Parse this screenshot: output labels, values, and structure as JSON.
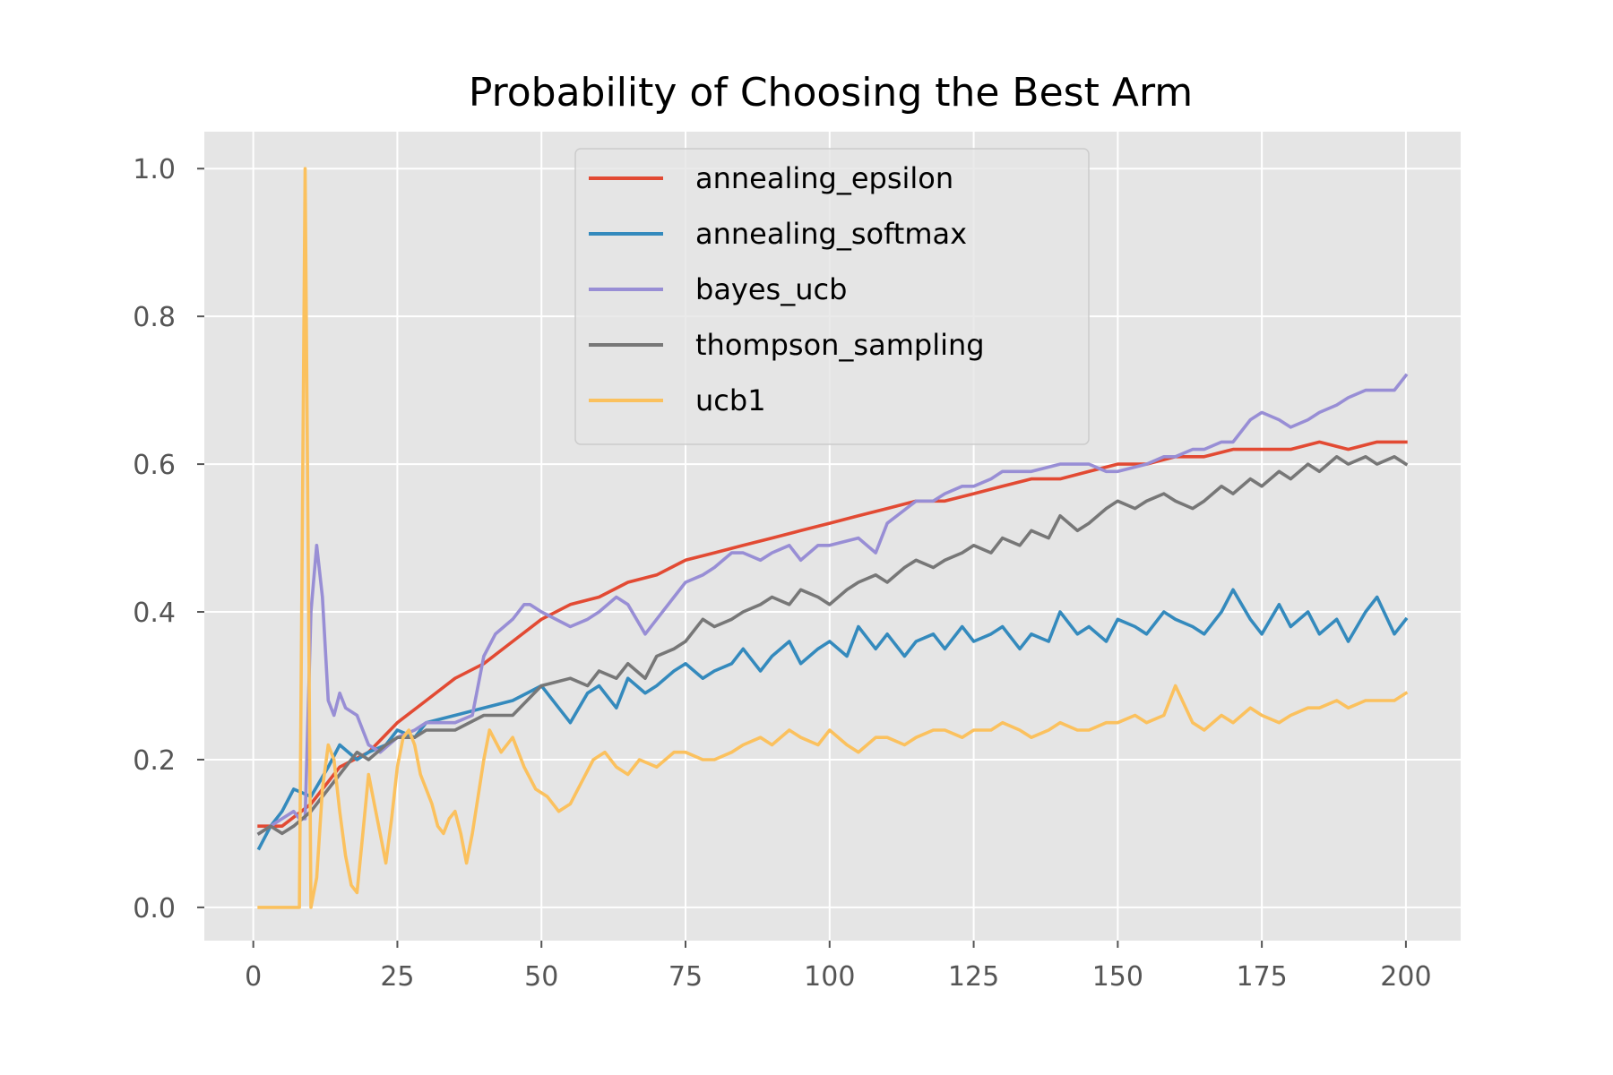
{
  "chart_data": {
    "type": "line",
    "title": "Probability of Choosing the Best Arm",
    "xlabel": "",
    "ylabel": "",
    "xlim": [
      -8.5,
      209.5
    ],
    "ylim": [
      -0.045,
      1.05
    ],
    "xticks": [
      0,
      25,
      50,
      75,
      100,
      125,
      150,
      175,
      200
    ],
    "xtick_labels": [
      "0",
      "25",
      "50",
      "75",
      "100",
      "125",
      "150",
      "175",
      "200"
    ],
    "yticks": [
      0.0,
      0.2,
      0.4,
      0.6,
      0.8,
      1.0
    ],
    "ytick_labels": [
      "0.0",
      "0.2",
      "0.4",
      "0.6",
      "0.8",
      "1.0"
    ],
    "grid": true,
    "background": "#E5E5E5",
    "legend_position": "upper-center",
    "series": [
      {
        "name": "annealing_epsilon",
        "color": "#E24A33",
        "x": [
          1,
          5,
          10,
          15,
          20,
          25,
          30,
          35,
          40,
          45,
          50,
          55,
          60,
          65,
          70,
          75,
          80,
          85,
          90,
          95,
          100,
          105,
          110,
          115,
          120,
          125,
          130,
          135,
          140,
          145,
          150,
          155,
          160,
          165,
          170,
          175,
          180,
          185,
          190,
          195,
          200
        ],
        "y": [
          0.11,
          0.11,
          0.14,
          0.19,
          0.21,
          0.25,
          0.28,
          0.31,
          0.33,
          0.36,
          0.39,
          0.41,
          0.42,
          0.44,
          0.45,
          0.47,
          0.48,
          0.49,
          0.5,
          0.51,
          0.52,
          0.53,
          0.54,
          0.55,
          0.55,
          0.56,
          0.57,
          0.58,
          0.58,
          0.59,
          0.6,
          0.6,
          0.61,
          0.61,
          0.62,
          0.62,
          0.62,
          0.63,
          0.62,
          0.63,
          0.63
        ]
      },
      {
        "name": "annealing_softmax",
        "color": "#348ABD",
        "x": [
          1,
          3,
          5,
          7,
          10,
          13,
          15,
          18,
          20,
          23,
          25,
          28,
          30,
          35,
          40,
          45,
          50,
          53,
          55,
          58,
          60,
          63,
          65,
          68,
          70,
          73,
          75,
          78,
          80,
          83,
          85,
          88,
          90,
          93,
          95,
          98,
          100,
          103,
          105,
          108,
          110,
          113,
          115,
          118,
          120,
          123,
          125,
          128,
          130,
          133,
          135,
          138,
          140,
          143,
          145,
          148,
          150,
          153,
          155,
          158,
          160,
          163,
          165,
          168,
          170,
          173,
          175,
          178,
          180,
          183,
          185,
          188,
          190,
          193,
          195,
          198,
          200
        ],
        "y": [
          0.08,
          0.11,
          0.13,
          0.16,
          0.15,
          0.19,
          0.22,
          0.2,
          0.21,
          0.22,
          0.24,
          0.23,
          0.25,
          0.26,
          0.27,
          0.28,
          0.3,
          0.27,
          0.25,
          0.29,
          0.3,
          0.27,
          0.31,
          0.29,
          0.3,
          0.32,
          0.33,
          0.31,
          0.32,
          0.33,
          0.35,
          0.32,
          0.34,
          0.36,
          0.33,
          0.35,
          0.36,
          0.34,
          0.38,
          0.35,
          0.37,
          0.34,
          0.36,
          0.37,
          0.35,
          0.38,
          0.36,
          0.37,
          0.38,
          0.35,
          0.37,
          0.36,
          0.4,
          0.37,
          0.38,
          0.36,
          0.39,
          0.38,
          0.37,
          0.4,
          0.39,
          0.38,
          0.37,
          0.4,
          0.43,
          0.39,
          0.37,
          0.41,
          0.38,
          0.4,
          0.37,
          0.39,
          0.36,
          0.4,
          0.42,
          0.37,
          0.39
        ]
      },
      {
        "name": "bayes_ucb",
        "color": "#988ED5",
        "x": [
          1,
          3,
          5,
          7,
          8,
          9,
          10,
          11,
          12,
          13,
          14,
          15,
          16,
          18,
          20,
          22,
          25,
          28,
          30,
          35,
          38,
          40,
          42,
          45,
          47,
          48,
          50,
          55,
          58,
          60,
          63,
          65,
          68,
          70,
          73,
          75,
          78,
          80,
          83,
          85,
          88,
          90,
          93,
          95,
          98,
          100,
          105,
          108,
          110,
          115,
          118,
          120,
          123,
          125,
          128,
          130,
          135,
          140,
          143,
          145,
          148,
          150,
          155,
          158,
          160,
          163,
          165,
          168,
          170,
          173,
          175,
          178,
          180,
          183,
          185,
          188,
          190,
          193,
          195,
          198,
          200
        ],
        "y": [
          0.1,
          0.11,
          0.12,
          0.13,
          0.12,
          0.12,
          0.4,
          0.49,
          0.42,
          0.28,
          0.26,
          0.29,
          0.27,
          0.26,
          0.22,
          0.21,
          0.23,
          0.24,
          0.25,
          0.25,
          0.26,
          0.34,
          0.37,
          0.39,
          0.41,
          0.41,
          0.4,
          0.38,
          0.39,
          0.4,
          0.42,
          0.41,
          0.37,
          0.39,
          0.42,
          0.44,
          0.45,
          0.46,
          0.48,
          0.48,
          0.47,
          0.48,
          0.49,
          0.47,
          0.49,
          0.49,
          0.5,
          0.48,
          0.52,
          0.55,
          0.55,
          0.56,
          0.57,
          0.57,
          0.58,
          0.59,
          0.59,
          0.6,
          0.6,
          0.6,
          0.59,
          0.59,
          0.6,
          0.61,
          0.61,
          0.62,
          0.62,
          0.63,
          0.63,
          0.66,
          0.67,
          0.66,
          0.65,
          0.66,
          0.67,
          0.68,
          0.69,
          0.7,
          0.7,
          0.7,
          0.72
        ]
      },
      {
        "name": "thompson_sampling",
        "color": "#777777",
        "x": [
          1,
          3,
          5,
          7,
          10,
          13,
          15,
          18,
          20,
          23,
          25,
          28,
          30,
          35,
          40,
          45,
          50,
          55,
          58,
          60,
          63,
          65,
          68,
          70,
          73,
          75,
          78,
          80,
          83,
          85,
          88,
          90,
          93,
          95,
          98,
          100,
          103,
          105,
          108,
          110,
          113,
          115,
          118,
          120,
          123,
          125,
          128,
          130,
          133,
          135,
          138,
          140,
          143,
          145,
          148,
          150,
          153,
          155,
          158,
          160,
          163,
          165,
          168,
          170,
          173,
          175,
          178,
          180,
          183,
          185,
          188,
          190,
          193,
          195,
          198,
          200
        ],
        "y": [
          0.1,
          0.11,
          0.1,
          0.11,
          0.13,
          0.16,
          0.18,
          0.21,
          0.2,
          0.22,
          0.23,
          0.23,
          0.24,
          0.24,
          0.26,
          0.26,
          0.3,
          0.31,
          0.3,
          0.32,
          0.31,
          0.33,
          0.31,
          0.34,
          0.35,
          0.36,
          0.39,
          0.38,
          0.39,
          0.4,
          0.41,
          0.42,
          0.41,
          0.43,
          0.42,
          0.41,
          0.43,
          0.44,
          0.45,
          0.44,
          0.46,
          0.47,
          0.46,
          0.47,
          0.48,
          0.49,
          0.48,
          0.5,
          0.49,
          0.51,
          0.5,
          0.53,
          0.51,
          0.52,
          0.54,
          0.55,
          0.54,
          0.55,
          0.56,
          0.55,
          0.54,
          0.55,
          0.57,
          0.56,
          0.58,
          0.57,
          0.59,
          0.58,
          0.6,
          0.59,
          0.61,
          0.6,
          0.61,
          0.6,
          0.61,
          0.6
        ]
      },
      {
        "name": "ucb1",
        "color": "#FBC15E",
        "x": [
          1,
          2,
          3,
          4,
          5,
          6,
          7,
          8,
          9,
          10,
          11,
          12,
          13,
          14,
          15,
          16,
          17,
          18,
          19,
          20,
          21,
          22,
          23,
          24,
          25,
          26,
          27,
          28,
          29,
          30,
          31,
          32,
          33,
          34,
          35,
          36,
          37,
          38,
          39,
          40,
          41,
          43,
          45,
          47,
          49,
          51,
          53,
          55,
          57,
          59,
          61,
          63,
          65,
          67,
          70,
          73,
          75,
          78,
          80,
          83,
          85,
          88,
          90,
          93,
          95,
          98,
          100,
          103,
          105,
          108,
          110,
          113,
          115,
          118,
          120,
          123,
          125,
          128,
          130,
          133,
          135,
          138,
          140,
          143,
          145,
          148,
          150,
          153,
          155,
          158,
          160,
          163,
          165,
          168,
          170,
          173,
          175,
          178,
          180,
          183,
          185,
          188,
          190,
          193,
          195,
          198,
          200
        ],
        "y": [
          0.0,
          0.0,
          0.0,
          0.0,
          0.0,
          0.0,
          0.0,
          0.0,
          1.0,
          0.0,
          0.04,
          0.16,
          0.22,
          0.2,
          0.13,
          0.07,
          0.03,
          0.02,
          0.1,
          0.18,
          0.14,
          0.1,
          0.06,
          0.12,
          0.19,
          0.23,
          0.24,
          0.22,
          0.18,
          0.16,
          0.14,
          0.11,
          0.1,
          0.12,
          0.13,
          0.1,
          0.06,
          0.1,
          0.15,
          0.2,
          0.24,
          0.21,
          0.23,
          0.19,
          0.16,
          0.15,
          0.13,
          0.14,
          0.17,
          0.2,
          0.21,
          0.19,
          0.18,
          0.2,
          0.19,
          0.21,
          0.21,
          0.2,
          0.2,
          0.21,
          0.22,
          0.23,
          0.22,
          0.24,
          0.23,
          0.22,
          0.24,
          0.22,
          0.21,
          0.23,
          0.23,
          0.22,
          0.23,
          0.24,
          0.24,
          0.23,
          0.24,
          0.24,
          0.25,
          0.24,
          0.23,
          0.24,
          0.25,
          0.24,
          0.24,
          0.25,
          0.25,
          0.26,
          0.25,
          0.26,
          0.3,
          0.25,
          0.24,
          0.26,
          0.25,
          0.27,
          0.26,
          0.25,
          0.26,
          0.27,
          0.27,
          0.28,
          0.27,
          0.28,
          0.28,
          0.28,
          0.29
        ]
      }
    ]
  }
}
